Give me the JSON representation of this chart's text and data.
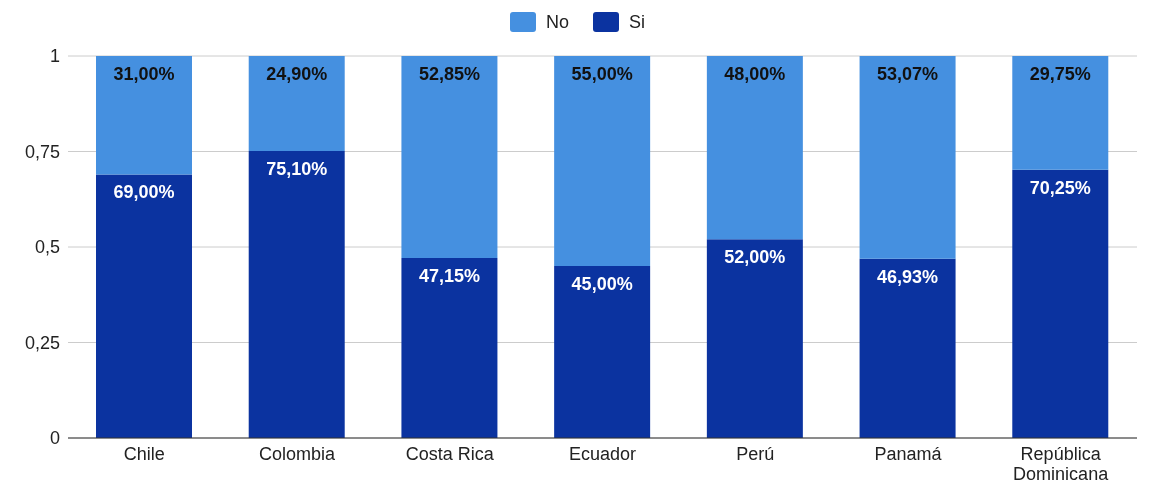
{
  "chart_data": {
    "type": "bar",
    "stacked": true,
    "categories": [
      "Chile",
      "Colombia",
      "Costa Rica",
      "Ecuador",
      "Perú",
      "Panamá",
      "República Dominicana"
    ],
    "series": [
      {
        "name": "Si",
        "color": "#0b33a0",
        "values": [
          0.69,
          0.751,
          0.4715,
          0.45,
          0.52,
          0.4693,
          0.7025
        ],
        "value_labels": [
          "69,00%",
          "75,10%",
          "47,15%",
          "45,00%",
          "52,00%",
          "46,93%",
          "70,25%"
        ]
      },
      {
        "name": "No",
        "color": "#4590e0",
        "values": [
          0.31,
          0.249,
          0.5285,
          0.55,
          0.48,
          0.5307,
          0.2975
        ],
        "value_labels": [
          "31,00%",
          "24,90%",
          "52,85%",
          "55,00%",
          "48,00%",
          "53,07%",
          "29,75%"
        ]
      }
    ],
    "ylim": [
      0,
      1
    ],
    "yticks": [
      {
        "value": 0,
        "label": "0"
      },
      {
        "value": 0.25,
        "label": "0,25"
      },
      {
        "value": 0.5,
        "label": "0,5"
      },
      {
        "value": 0.75,
        "label": "0,75"
      },
      {
        "value": 1,
        "label": "1"
      }
    ],
    "grid": "y",
    "legend": "top"
  }
}
